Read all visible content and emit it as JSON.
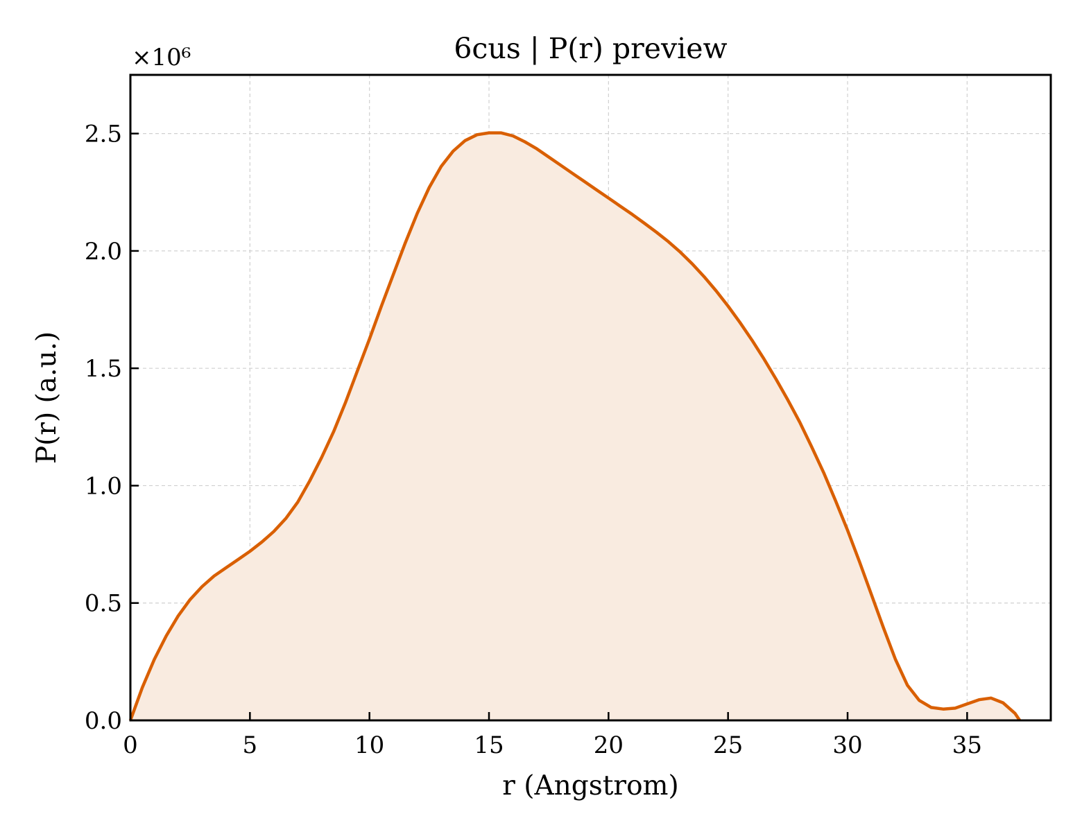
{
  "chart_data": {
    "type": "area",
    "title": "6cus | P(r) preview",
    "xlabel": "r (Angstrom)",
    "ylabel": "P(r) (a.u.)",
    "y_multiplier_label": "×10⁶",
    "xlim": [
      0,
      38.5
    ],
    "ylim": [
      0,
      2.75
    ],
    "xticks": [
      0,
      5,
      10,
      15,
      20,
      25,
      30,
      35
    ],
    "xtick_labels": [
      "0",
      "5",
      "10",
      "15",
      "20",
      "25",
      "30",
      "35"
    ],
    "yticks": [
      0,
      0.5,
      1.0,
      1.5,
      2.0,
      2.5
    ],
    "ytick_labels": [
      "0.0",
      "0.5",
      "1.0",
      "1.5",
      "2.0",
      "2.5"
    ],
    "grid": true,
    "colors": {
      "line": "#d95f02",
      "fill": "#f9ebe0",
      "grid": "#d0d0d0",
      "axes": "#000000"
    },
    "series": [
      {
        "x": [
          0,
          0.5,
          1,
          1.5,
          2,
          2.5,
          3,
          3.5,
          4,
          4.5,
          5,
          5.5,
          6,
          6.5,
          7,
          7.5,
          8,
          8.5,
          9,
          9.5,
          10,
          10.5,
          11,
          11.5,
          12,
          12.5,
          13,
          13.5,
          14,
          14.5,
          15,
          15.5,
          16,
          16.5,
          17,
          17.5,
          18,
          18.5,
          19,
          19.5,
          20,
          20.5,
          21,
          21.5,
          22,
          22.5,
          23,
          23.5,
          24,
          24.5,
          25,
          25.5,
          26,
          26.5,
          27,
          27.5,
          28,
          28.5,
          29,
          29.5,
          30,
          30.5,
          31,
          31.5,
          32,
          32.5,
          33,
          33.5,
          34,
          34.5,
          35,
          35.5,
          36,
          36.5,
          37,
          37.2
        ],
        "values": [
          0,
          0.14,
          0.26,
          0.36,
          0.445,
          0.515,
          0.57,
          0.615,
          0.65,
          0.685,
          0.72,
          0.76,
          0.805,
          0.86,
          0.93,
          1.02,
          1.12,
          1.23,
          1.355,
          1.49,
          1.625,
          1.765,
          1.9,
          2.035,
          2.16,
          2.27,
          2.36,
          2.425,
          2.47,
          2.495,
          2.503,
          2.503,
          2.49,
          2.465,
          2.435,
          2.4,
          2.365,
          2.33,
          2.295,
          2.26,
          2.225,
          2.19,
          2.155,
          2.118,
          2.08,
          2.04,
          1.995,
          1.945,
          1.89,
          1.83,
          1.765,
          1.695,
          1.62,
          1.54,
          1.455,
          1.365,
          1.27,
          1.165,
          1.055,
          0.935,
          0.81,
          0.675,
          0.535,
          0.395,
          0.26,
          0.15,
          0.085,
          0.055,
          0.048,
          0.052,
          0.07,
          0.088,
          0.095,
          0.075,
          0.03,
          0.0
        ]
      }
    ]
  }
}
